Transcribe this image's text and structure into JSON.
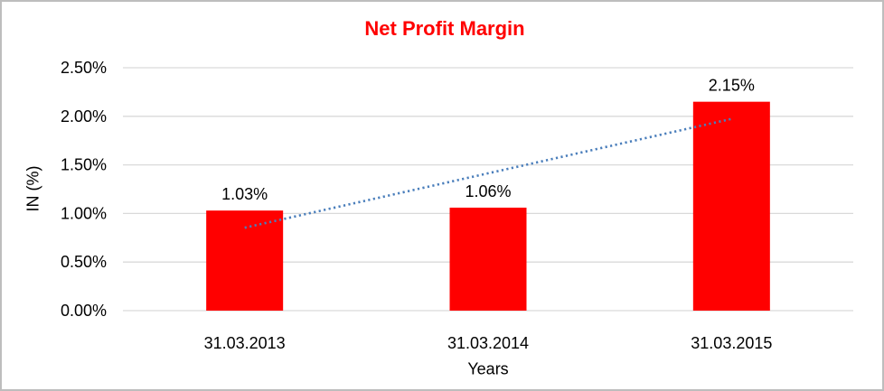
{
  "window": {
    "background_color": "#ffffff",
    "frame_border_color": "#bdbdbd"
  },
  "chart_data": {
    "type": "bar",
    "title": "Net Profit Margin",
    "title_color": "#ff0000",
    "xlabel": "Years",
    "ylabel": "IN (%)",
    "categories": [
      "31.03.2013",
      "31.03.2014",
      "31.03.2015"
    ],
    "values": [
      1.03,
      1.06,
      2.15
    ],
    "data_labels": [
      "1.03%",
      "1.06%",
      "2.15%"
    ],
    "ylim": [
      0,
      2.5
    ],
    "ytick_step": 0.5,
    "ytick_labels": [
      "0.00%",
      "0.50%",
      "1.00%",
      "1.50%",
      "2.00%",
      "2.50%"
    ],
    "bar_color": "#ff0000",
    "gridline_color": "#d9d9d9",
    "grid": true,
    "legend_position": "none",
    "trendline": {
      "kind": "linear",
      "style": "dotted",
      "color": "#4a7ebb"
    }
  }
}
